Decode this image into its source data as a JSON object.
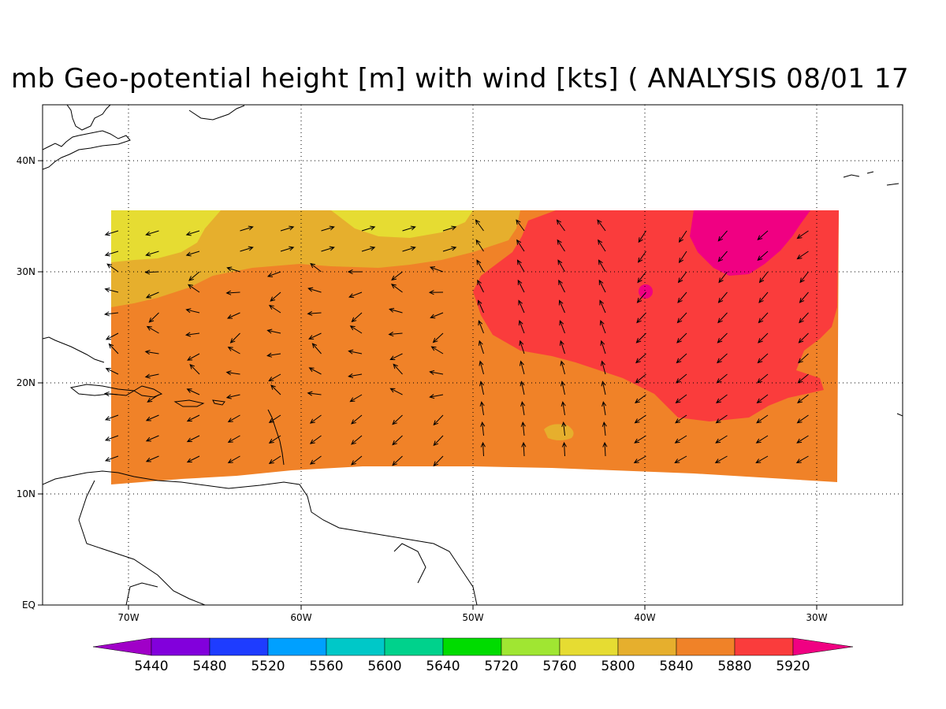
{
  "title": "mb Geo-potential height [m] with wind [kts] ( ANALYSIS 08/01 17",
  "axes": {
    "lon_ticks": [
      {
        "label": "70W",
        "value": -70
      },
      {
        "label": "60W",
        "value": -60
      },
      {
        "label": "50W",
        "value": -50
      },
      {
        "label": "40W",
        "value": -40
      },
      {
        "label": "30W",
        "value": -30
      }
    ],
    "lat_ticks": [
      {
        "label": "EQ",
        "value": 0
      },
      {
        "label": "10N",
        "value": 10
      },
      {
        "label": "20N",
        "value": 20
      },
      {
        "label": "30N",
        "value": 30
      },
      {
        "label": "40N",
        "value": 40
      }
    ],
    "lon_range": [
      -75,
      -25
    ],
    "lat_range": [
      0,
      45
    ],
    "grid": "dotted"
  },
  "colorbar": {
    "levels": [
      "5440",
      "5480",
      "5520",
      "5560",
      "5600",
      "5640",
      "5720",
      "5760",
      "5800",
      "5840",
      "5880",
      "5920"
    ],
    "colors": [
      "#a000c8",
      "#8200dc",
      "#1e3cff",
      "#00a0ff",
      "#00c8c8",
      "#00d28c",
      "#00dc00",
      "#a0e632",
      "#e6dc32",
      "#e6af2d",
      "#f08228",
      "#fa3c3c",
      "#f00082"
    ]
  },
  "chart_data": {
    "type": "heatmap",
    "variable": "Geo-potential height [m] with wind [kts]",
    "data_domain": {
      "lon": [
        -71,
        -29
      ],
      "lat_north": 35.5
    },
    "regions": [
      {
        "level": "5800-5840",
        "color": "#e6dc32",
        "area": "northwest corner near 67W-72W, 31N-35N; along north edge near 52W-58W"
      },
      {
        "level": "5840-5880",
        "color": "#e6af2d",
        "area": "northern band 31N-35N west of 48W; small patch near 45W 15N"
      },
      {
        "level": "5880-5920",
        "color": "#f08228",
        "area": "bulk of domain 11N-31N"
      },
      {
        "level": "5920+",
        "color": "#fa3c3c",
        "area": "northeast region 29W-48W, 18N-35N"
      },
      {
        "level": ">5920",
        "color": "#f00082",
        "area": "near 31W-37W, 31N-35N; spot near 40W 28N"
      }
    ]
  }
}
